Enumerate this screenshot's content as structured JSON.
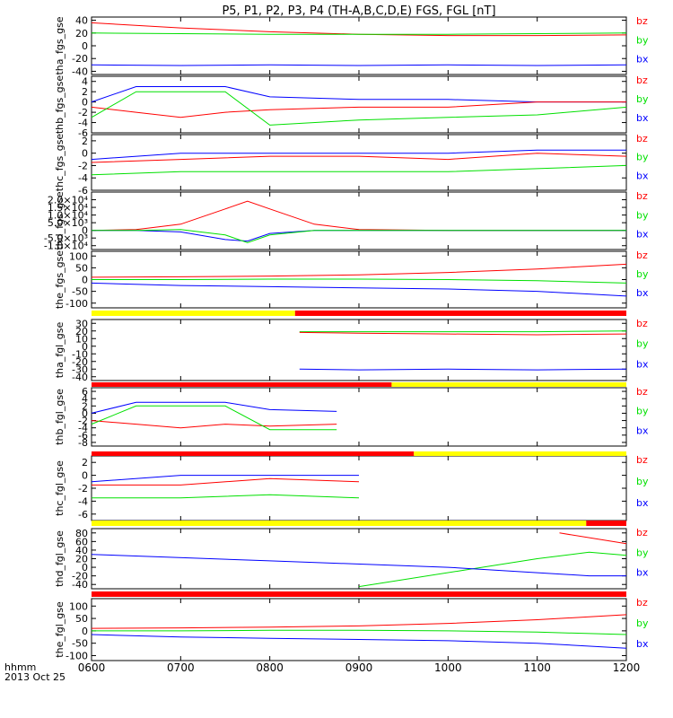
{
  "title": "P5, P1, P2, P3, P4 (TH-A,B,C,D,E) FGS, FGL [nT]",
  "time_axis": {
    "label_line1": "hhmm",
    "label_line2": "2013 Oct 25",
    "range": [
      "0600",
      "1200"
    ],
    "ticks": [
      "0600",
      "0700",
      "0800",
      "0900",
      "1000",
      "1100",
      "1200"
    ]
  },
  "colors": {
    "bx": "#0000ff",
    "by": "#00e000",
    "bz": "#ff0000",
    "bar_yellow": "#ffff00",
    "bar_red": "#ff0000",
    "ink": "#000000"
  },
  "chart_data": [
    {
      "type": "line",
      "ylabel": "tha_fgs_gse",
      "yrange": [
        -45,
        45
      ],
      "yticks": [
        "40",
        "20",
        "0",
        "-20",
        "-40"
      ],
      "ytick_values": [
        40,
        20,
        0,
        -20,
        -40
      ],
      "series": [
        {
          "name": "bz",
          "x": [
            "0600",
            "0700",
            "0800",
            "0900",
            "1000",
            "1100",
            "1200"
          ],
          "y": [
            36,
            28,
            22,
            18,
            16,
            16,
            17
          ]
        },
        {
          "name": "by",
          "x": [
            "0600",
            "0700",
            "0800",
            "0900",
            "1000",
            "1100",
            "1200"
          ],
          "y": [
            20,
            19,
            18,
            18,
            18,
            19,
            20
          ]
        },
        {
          "name": "bx",
          "x": [
            "0600",
            "0700",
            "0800",
            "0900",
            "1000",
            "1100",
            "1200"
          ],
          "y": [
            -30,
            -31,
            -30,
            -31,
            -30,
            -31,
            -30
          ]
        }
      ]
    },
    {
      "type": "line",
      "ylabel": "thb_fgs_gse",
      "yrange": [
        -6,
        5
      ],
      "yticks": [
        "4",
        "2",
        "0",
        "-2",
        "-4",
        "-6"
      ],
      "ytick_values": [
        4,
        2,
        0,
        -2,
        -4,
        -6
      ],
      "series": [
        {
          "name": "bx",
          "x": [
            "0600",
            "0630",
            "0700",
            "0730",
            "0800",
            "0900",
            "1000",
            "1100",
            "1200"
          ],
          "y": [
            0,
            3,
            3,
            3,
            1,
            0.5,
            0.5,
            0,
            0
          ]
        },
        {
          "name": "bz",
          "x": [
            "0600",
            "0630",
            "0700",
            "0730",
            "0800",
            "0900",
            "1000",
            "1100",
            "1200"
          ],
          "y": [
            -1,
            -2,
            -3,
            -2,
            -1.5,
            -1,
            -1,
            0,
            0
          ]
        },
        {
          "name": "by",
          "x": [
            "0600",
            "0630",
            "0700",
            "0730",
            "0800",
            "0900",
            "1000",
            "1100",
            "1200"
          ],
          "y": [
            -3,
            2,
            2,
            2,
            -4.5,
            -3.5,
            -3,
            -2.5,
            -1
          ]
        }
      ]
    },
    {
      "type": "line",
      "ylabel": "thc_fgs_gse",
      "yrange": [
        -6,
        3
      ],
      "yticks": [
        "2",
        "0",
        "-2",
        "-4",
        "-6"
      ],
      "ytick_values": [
        2,
        0,
        -2,
        -4,
        -6
      ],
      "series": [
        {
          "name": "bx",
          "x": [
            "0600",
            "0700",
            "0800",
            "0900",
            "1000",
            "1100",
            "1200"
          ],
          "y": [
            -1,
            0,
            0,
            0,
            0,
            0.5,
            0.5
          ]
        },
        {
          "name": "bz",
          "x": [
            "0600",
            "0700",
            "0800",
            "0900",
            "1000",
            "1100",
            "1200"
          ],
          "y": [
            -1.5,
            -1,
            -0.5,
            -0.5,
            -1,
            0,
            -0.5
          ]
        },
        {
          "name": "by",
          "x": [
            "0600",
            "0700",
            "0800",
            "0900",
            "1000",
            "1100",
            "1200"
          ],
          "y": [
            -3.5,
            -3,
            -3,
            -3,
            -3,
            -2.5,
            -2
          ]
        }
      ]
    },
    {
      "type": "line",
      "ylabel": "thd_fgs_gse",
      "yrange": [
        -12500.0,
        25000.0
      ],
      "yticks": [
        "2.0×10⁴",
        "1.5×10⁴",
        "1.0×10⁴",
        "5.0×10³",
        "0",
        "-5.0×10³",
        "-1.0×10⁴"
      ],
      "ytick_values": [
        20000,
        15000,
        10000,
        5000,
        0,
        -5000,
        -10000
      ],
      "series": [
        {
          "name": "bz",
          "x": [
            "0600",
            "0630",
            "0700",
            "0730",
            "0745",
            "0800",
            "0830",
            "0900",
            "1000",
            "1200"
          ],
          "y": [
            0,
            500,
            4000,
            14000,
            19000,
            14000,
            4000,
            500,
            0,
            0
          ]
        },
        {
          "name": "bx",
          "x": [
            "0600",
            "0630",
            "0700",
            "0730",
            "0745",
            "0800",
            "0830",
            "0900",
            "1000",
            "1200"
          ],
          "y": [
            0,
            0,
            -1000,
            -6000,
            -7000,
            -2000,
            0,
            0,
            0,
            0
          ]
        },
        {
          "name": "by",
          "x": [
            "0600",
            "0630",
            "0700",
            "0730",
            "0745",
            "0800",
            "0830",
            "0900",
            "1000",
            "1200"
          ],
          "y": [
            0,
            0,
            500,
            -3000,
            -8000,
            -3000,
            0,
            0,
            0,
            0
          ]
        }
      ]
    },
    {
      "type": "line",
      "ylabel": "the_fgs_gse",
      "yrange": [
        -120,
        120
      ],
      "yticks": [
        "100",
        "50",
        "0",
        "-50",
        "-100"
      ],
      "ytick_values": [
        100,
        50,
        0,
        -50,
        -100
      ],
      "series": [
        {
          "name": "bz",
          "x": [
            "0600",
            "0700",
            "0800",
            "0900",
            "1000",
            "1100",
            "1200"
          ],
          "y": [
            10,
            12,
            15,
            20,
            30,
            45,
            65
          ]
        },
        {
          "name": "by",
          "x": [
            "0600",
            "0700",
            "0800",
            "0900",
            "1000",
            "1100",
            "1200"
          ],
          "y": [
            0,
            0,
            2,
            2,
            0,
            -5,
            -15
          ]
        },
        {
          "name": "bx",
          "x": [
            "0600",
            "0700",
            "0800",
            "0900",
            "1000",
            "1100",
            "1200"
          ],
          "y": [
            -15,
            -25,
            -30,
            -35,
            -40,
            -50,
            -70
          ]
        }
      ]
    },
    {
      "type": "line",
      "ylabel": "tha_fgl_gse",
      "yrange": [
        -45,
        35
      ],
      "yticks": [
        "30",
        "20",
        "10",
        "0",
        "-10",
        "-20",
        "-30",
        "-40"
      ],
      "ytick_values": [
        30,
        20,
        10,
        0,
        -10,
        -20,
        -30,
        -40
      ],
      "series": [
        {
          "name": "by",
          "x": [
            "0820",
            "0900",
            "1000",
            "1100",
            "1200"
          ],
          "y": [
            19,
            19,
            19,
            19,
            20
          ]
        },
        {
          "name": "bz",
          "x": [
            "0820",
            "0900",
            "1000",
            "1100",
            "1200"
          ],
          "y": [
            18,
            17,
            16,
            15,
            16
          ]
        },
        {
          "name": "bx",
          "x": [
            "0820",
            "0900",
            "1000",
            "1100",
            "1200"
          ],
          "y": [
            -30,
            -31,
            -30,
            -31,
            -30
          ]
        }
      ]
    },
    {
      "type": "line",
      "ylabel": "thb_fgl_gse",
      "yrange": [
        -9,
        7
      ],
      "yticks": [
        "6",
        "4",
        "2",
        "0",
        "-2",
        "-4",
        "-6",
        "-8"
      ],
      "ytick_values": [
        6,
        4,
        2,
        0,
        -2,
        -4,
        -6,
        -8
      ],
      "series": [
        {
          "name": "bx",
          "x": [
            "0600",
            "0630",
            "0700",
            "0730",
            "0800",
            "0845"
          ],
          "y": [
            0,
            3,
            3,
            3,
            1,
            0.5
          ]
        },
        {
          "name": "bz",
          "x": [
            "0600",
            "0630",
            "0700",
            "0730",
            "0800",
            "0845"
          ],
          "y": [
            -2,
            -3,
            -4,
            -3,
            -3.5,
            -3
          ]
        },
        {
          "name": "by",
          "x": [
            "0600",
            "0630",
            "0700",
            "0730",
            "0800",
            "0845"
          ],
          "y": [
            -3,
            2,
            2,
            2,
            -4.5,
            -4.5
          ]
        }
      ]
    },
    {
      "type": "line",
      "ylabel": "thc_fgl_gse",
      "yrange": [
        -7,
        3
      ],
      "yticks": [
        "2",
        "0",
        "-2",
        "-4",
        "-6"
      ],
      "ytick_values": [
        2,
        0,
        -2,
        -4,
        -6
      ],
      "series": [
        {
          "name": "bx",
          "x": [
            "0600",
            "0700",
            "0800",
            "0900"
          ],
          "y": [
            -1,
            0,
            0,
            0
          ]
        },
        {
          "name": "bz",
          "x": [
            "0600",
            "0700",
            "0800",
            "0900"
          ],
          "y": [
            -1.5,
            -1.5,
            -0.5,
            -1
          ]
        },
        {
          "name": "by",
          "x": [
            "0600",
            "0700",
            "0800",
            "0900"
          ],
          "y": [
            -3.5,
            -3.5,
            -3,
            -3.5
          ]
        }
      ]
    },
    {
      "type": "line",
      "ylabel": "thd_fgl_gse",
      "yrange": [
        -50,
        90
      ],
      "yticks": [
        "80",
        "60",
        "40",
        "20",
        "0",
        "-20",
        "-40"
      ],
      "ytick_values": [
        80,
        60,
        40,
        20,
        0,
        -20,
        -40
      ],
      "series": [
        {
          "name": "bz",
          "x": [
            "1115",
            "1200"
          ],
          "y": [
            80,
            55
          ]
        },
        {
          "name": "by",
          "x": [
            "0900",
            "1100",
            "1135",
            "1200"
          ],
          "y": [
            -45,
            20,
            35,
            28
          ]
        },
        {
          "name": "bx",
          "x": [
            "0600",
            "0800",
            "1000",
            "1135",
            "1200"
          ],
          "y": [
            30,
            15,
            0,
            -20,
            -20
          ]
        }
      ]
    },
    {
      "type": "line",
      "ylabel": "the_fgl_gse",
      "yrange": [
        -120,
        130
      ],
      "yticks": [
        "100",
        "50",
        "0",
        "-50",
        "-100"
      ],
      "ytick_values": [
        100,
        50,
        0,
        -50,
        -100
      ],
      "series": [
        {
          "name": "bz",
          "x": [
            "0600",
            "0700",
            "0800",
            "0900",
            "1000",
            "1100",
            "1200"
          ],
          "y": [
            10,
            12,
            15,
            20,
            30,
            45,
            65
          ]
        },
        {
          "name": "by",
          "x": [
            "0600",
            "0700",
            "0800",
            "0900",
            "1000",
            "1100",
            "1200"
          ],
          "y": [
            0,
            0,
            2,
            2,
            0,
            -5,
            -15
          ]
        },
        {
          "name": "bx",
          "x": [
            "0600",
            "0700",
            "0800",
            "0900",
            "1000",
            "1100",
            "1200"
          ],
          "y": [
            -15,
            -25,
            -30,
            -35,
            -40,
            -50,
            -70
          ]
        }
      ]
    }
  ],
  "mode_bars": [
    {
      "segments": [
        {
          "from": "0600",
          "to": "0817",
          "color": "yellow"
        },
        {
          "from": "0817",
          "to": "1200",
          "color": "red"
        }
      ]
    },
    {
      "segments": [
        {
          "from": "0600",
          "to": "0882",
          "color": "red"
        },
        {
          "from": "0882",
          "to": "1200",
          "color": "yellow"
        }
      ]
    },
    {
      "segments": [
        {
          "from": "0600",
          "to": "0897",
          "color": "red"
        },
        {
          "from": "0897",
          "to": "1200",
          "color": "yellow"
        }
      ]
    },
    {
      "segments": [
        {
          "from": "0600",
          "to": "1133",
          "color": "yellow"
        },
        {
          "from": "1133",
          "to": "1200",
          "color": "red"
        }
      ]
    },
    {
      "segments": [
        {
          "from": "0600",
          "to": "1200",
          "color": "red"
        }
      ]
    }
  ]
}
